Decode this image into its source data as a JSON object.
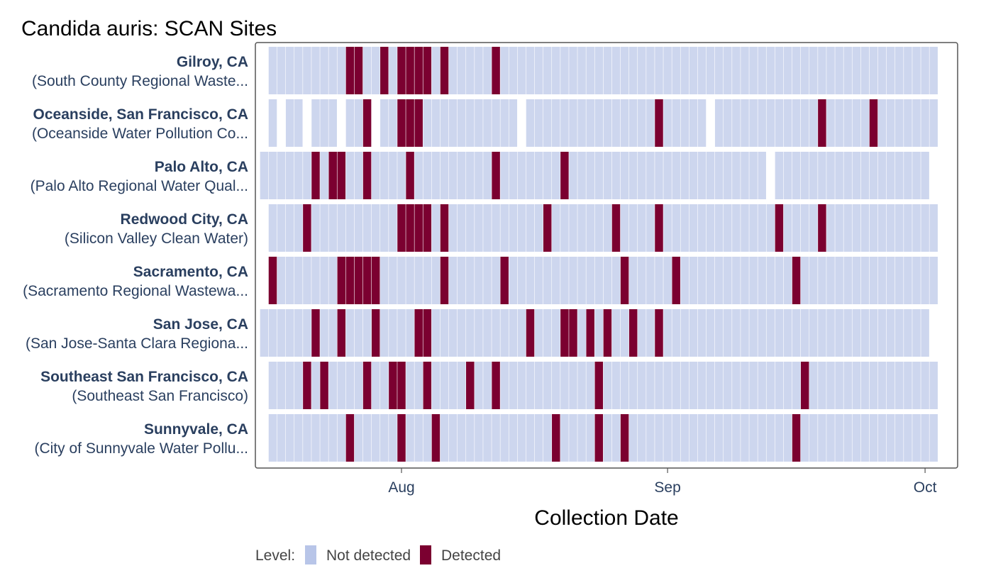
{
  "chart_data": {
    "type": "heatmap",
    "title": "Candida auris: SCAN Sites",
    "xlabel": "Collection Date",
    "ylabel": "",
    "x_ticks": [
      {
        "label": "Aug",
        "date": "2024-08-01"
      },
      {
        "label": "Sep",
        "date": "2024-09-01"
      },
      {
        "label": "Oct",
        "date": "2024-10-01"
      }
    ],
    "x_range": [
      "2024-07-16",
      "2024-10-02"
    ],
    "legend": {
      "title": "Level:",
      "placement": "bottom",
      "items": [
        {
          "label": "Not detected",
          "color": "#cdd6ee"
        },
        {
          "label": "Detected",
          "color": "#7b0030"
        }
      ]
    },
    "colors": {
      "not_detected": "#cdd6ee",
      "detected": "#7b0030",
      "legend_not_detected": "#b8c5e8",
      "frame": "#555555"
    },
    "sites": [
      {
        "name": "Gilroy, CA",
        "plant": "(South County Regional Waste...",
        "start": "2024-07-17",
        "end": "2024-10-02",
        "missing": [],
        "detected": [
          "2024-07-26",
          "2024-07-27",
          "2024-07-30",
          "2024-08-01",
          "2024-08-02",
          "2024-08-03",
          "2024-08-04",
          "2024-08-06",
          "2024-08-12"
        ]
      },
      {
        "name": "Oceanside, San Francisco, CA",
        "plant": "(Oceanside Water Pollution Co...",
        "start": "2024-07-17",
        "end": "2024-10-02",
        "missing": [
          "2024-07-18",
          "2024-07-21",
          "2024-07-25",
          "2024-07-29",
          "2024-08-15",
          "2024-09-06"
        ],
        "detected": [
          "2024-07-28",
          "2024-08-01",
          "2024-08-02",
          "2024-08-03",
          "2024-08-31",
          "2024-09-19",
          "2024-09-25"
        ]
      },
      {
        "name": "Palo Alto, CA",
        "plant": "(Palo Alto Regional Water Qual...",
        "start": "2024-07-16",
        "end": "2024-10-01",
        "missing": [
          "2024-09-13"
        ],
        "detected": [
          "2024-07-22",
          "2024-07-24",
          "2024-07-25",
          "2024-07-28",
          "2024-08-02",
          "2024-08-12",
          "2024-08-20"
        ]
      },
      {
        "name": "Redwood City, CA",
        "plant": "(Silicon Valley Clean Water)",
        "start": "2024-07-17",
        "end": "2024-10-02",
        "missing": [],
        "detected": [
          "2024-07-21",
          "2024-08-01",
          "2024-08-02",
          "2024-08-03",
          "2024-08-04",
          "2024-08-06",
          "2024-08-18",
          "2024-08-26",
          "2024-08-31",
          "2024-09-14",
          "2024-09-19"
        ]
      },
      {
        "name": "Sacramento, CA",
        "plant": "(Sacramento Regional Wastewa...",
        "start": "2024-07-17",
        "end": "2024-10-02",
        "missing": [],
        "detected": [
          "2024-07-17",
          "2024-07-25",
          "2024-07-26",
          "2024-07-27",
          "2024-07-28",
          "2024-07-29",
          "2024-08-06",
          "2024-08-13",
          "2024-08-27",
          "2024-09-02",
          "2024-09-16"
        ]
      },
      {
        "name": "San Jose, CA",
        "plant": "(San Jose-Santa Clara Regiona...",
        "start": "2024-07-16",
        "end": "2024-10-01",
        "missing": [],
        "detected": [
          "2024-07-22",
          "2024-07-25",
          "2024-07-29",
          "2024-08-03",
          "2024-08-04",
          "2024-08-16",
          "2024-08-20",
          "2024-08-21",
          "2024-08-23",
          "2024-08-25",
          "2024-08-28",
          "2024-08-31"
        ]
      },
      {
        "name": "Southeast San Francisco, CA",
        "plant": "(Southeast San Francisco)",
        "start": "2024-07-17",
        "end": "2024-10-02",
        "missing": [],
        "detected": [
          "2024-07-21",
          "2024-07-23",
          "2024-07-28",
          "2024-07-31",
          "2024-08-01",
          "2024-08-04",
          "2024-08-09",
          "2024-08-12",
          "2024-08-24",
          "2024-09-17"
        ]
      },
      {
        "name": "Sunnyvale, CA",
        "plant": "(City of Sunnyvale Water Pollu...",
        "start": "2024-07-17",
        "end": "2024-10-02",
        "missing": [],
        "detected": [
          "2024-07-26",
          "2024-08-01",
          "2024-08-05",
          "2024-08-19",
          "2024-08-24",
          "2024-08-27",
          "2024-09-16"
        ]
      }
    ]
  }
}
